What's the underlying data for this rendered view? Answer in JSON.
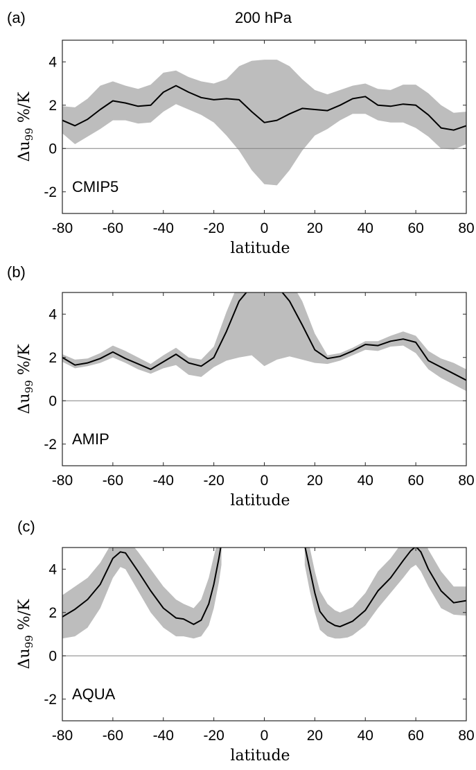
{
  "title": "200 hPa",
  "style": {
    "band_color": "#bdbdbd",
    "line_color": "#000000",
    "zero_line_color": "#808080"
  },
  "chart_data": [
    {
      "panel_label": "(a)",
      "name": "CMIP5",
      "type": "line",
      "xlabel": "latitude",
      "ylabel_main": "Δu",
      "ylabel_sub": "99",
      "ylabel_units": " %/K",
      "xlim": [
        -80,
        80
      ],
      "ylim": [
        -3,
        5
      ],
      "xticks": [
        -80,
        -60,
        -40,
        -20,
        0,
        20,
        40,
        60,
        80
      ],
      "yticks": [
        -2,
        0,
        2,
        4
      ],
      "x": [
        -80,
        -75,
        -70,
        -65,
        -60,
        -55,
        -50,
        -45,
        -40,
        -35,
        -30,
        -25,
        -20,
        -15,
        -10,
        -5,
        0,
        5,
        10,
        15,
        20,
        25,
        30,
        35,
        40,
        45,
        50,
        55,
        60,
        65,
        70,
        75,
        80
      ],
      "mean": [
        1.3,
        1.05,
        1.35,
        1.8,
        2.2,
        2.1,
        1.95,
        2.0,
        2.6,
        2.9,
        2.6,
        2.35,
        2.25,
        2.3,
        2.25,
        1.7,
        1.2,
        1.3,
        1.6,
        1.85,
        1.8,
        1.75,
        2.0,
        2.3,
        2.4,
        2.0,
        1.95,
        2.05,
        2.0,
        1.55,
        0.95,
        0.85,
        1.05
      ],
      "upper": [
        1.95,
        1.9,
        2.3,
        2.9,
        3.1,
        2.9,
        2.75,
        2.95,
        3.5,
        3.6,
        3.3,
        3.1,
        3.0,
        3.2,
        3.8,
        4.05,
        4.1,
        4.1,
        3.8,
        3.2,
        2.7,
        2.5,
        2.7,
        2.9,
        3.0,
        2.75,
        2.7,
        2.95,
        2.95,
        2.55,
        2.0,
        1.65,
        1.7
      ],
      "lower": [
        0.7,
        0.2,
        0.55,
        0.9,
        1.3,
        1.3,
        1.15,
        1.2,
        1.7,
        2.05,
        1.8,
        1.55,
        1.2,
        0.6,
        -0.1,
        -1.0,
        -1.65,
        -1.7,
        -1.0,
        -0.1,
        0.6,
        0.9,
        1.3,
        1.6,
        1.6,
        1.3,
        1.2,
        1.2,
        0.95,
        0.55,
        0.0,
        -0.05,
        0.2
      ]
    },
    {
      "panel_label": "(b)",
      "name": "AMIP",
      "type": "line",
      "xlabel": "latitude",
      "ylabel_main": "Δu",
      "ylabel_sub": "99",
      "ylabel_units": " %/K",
      "xlim": [
        -80,
        80
      ],
      "ylim": [
        -3,
        5
      ],
      "xticks": [
        -80,
        -60,
        -40,
        -20,
        0,
        20,
        40,
        60,
        80
      ],
      "yticks": [
        -2,
        0,
        2,
        4
      ],
      "x": [
        -80,
        -75,
        -70,
        -65,
        -60,
        -55,
        -50,
        -45,
        -40,
        -35,
        -30,
        -25,
        -20,
        -15,
        -10,
        -5,
        0,
        5,
        10,
        15,
        20,
        25,
        30,
        35,
        40,
        45,
        50,
        55,
        60,
        65,
        70,
        75,
        80
      ],
      "mean": [
        2.0,
        1.65,
        1.75,
        1.95,
        2.25,
        1.95,
        1.7,
        1.45,
        1.8,
        2.15,
        1.75,
        1.6,
        2.0,
        3.2,
        4.6,
        5.3,
        5.4,
        5.3,
        4.6,
        3.5,
        2.35,
        1.95,
        2.05,
        2.3,
        2.6,
        2.55,
        2.75,
        2.85,
        2.7,
        1.85,
        1.55,
        1.25,
        0.95
      ],
      "upper": [
        2.15,
        1.9,
        1.95,
        2.2,
        2.55,
        2.3,
        2.0,
        1.7,
        2.1,
        2.45,
        2.0,
        1.9,
        2.5,
        4.1,
        5.5,
        6.0,
        6.0,
        6.0,
        5.6,
        4.6,
        3.1,
        2.1,
        2.2,
        2.45,
        2.75,
        2.75,
        3.0,
        3.2,
        3.0,
        2.3,
        1.95,
        1.75,
        1.45
      ],
      "lower": [
        1.8,
        1.5,
        1.6,
        1.75,
        2.0,
        1.75,
        1.45,
        1.25,
        1.5,
        1.65,
        1.2,
        1.1,
        1.55,
        1.85,
        2.0,
        2.1,
        1.6,
        1.9,
        2.05,
        1.9,
        1.75,
        1.7,
        1.85,
        2.1,
        2.35,
        2.3,
        2.5,
        2.55,
        2.2,
        1.45,
        1.05,
        0.75,
        0.45
      ]
    },
    {
      "panel_label": "(c)",
      "name": "AQUA",
      "type": "line",
      "xlabel": "latitude",
      "ylabel_main": "Δu",
      "ylabel_sub": "99",
      "ylabel_units": " %/K",
      "xlim": [
        -80,
        80
      ],
      "ylim": [
        -3,
        5
      ],
      "xticks": [
        -80,
        -60,
        -40,
        -20,
        0,
        20,
        40,
        60,
        80
      ],
      "yticks": [
        -2,
        0,
        2,
        4
      ],
      "segments": [
        {
          "x": [
            -80,
            -75,
            -70,
            -65,
            -60,
            -57,
            -55,
            -50,
            -45,
            -40,
            -35,
            -32,
            -28,
            -25,
            -22,
            -20,
            -18,
            -17
          ],
          "mean": [
            1.8,
            2.15,
            2.6,
            3.3,
            4.5,
            4.8,
            4.75,
            3.9,
            3.0,
            2.2,
            1.75,
            1.7,
            1.45,
            1.65,
            2.4,
            3.3,
            4.5,
            5.2
          ],
          "upper": [
            2.8,
            3.2,
            3.6,
            4.3,
            5.3,
            5.5,
            5.5,
            4.8,
            4.0,
            3.2,
            2.6,
            2.4,
            2.2,
            2.6,
            3.6,
            4.6,
            5.5,
            6.0
          ],
          "lower": [
            0.8,
            0.9,
            1.3,
            2.2,
            3.6,
            4.1,
            4.0,
            3.0,
            2.0,
            1.3,
            0.9,
            0.9,
            0.8,
            0.9,
            1.4,
            2.2,
            3.4,
            4.2
          ]
        },
        {
          "x": [
            16,
            18,
            20,
            22,
            25,
            28,
            30,
            33,
            35,
            40,
            45,
            50,
            55,
            58,
            60,
            62,
            65,
            70,
            75,
            80
          ],
          "mean": [
            5.1,
            4.0,
            2.9,
            2.05,
            1.6,
            1.4,
            1.35,
            1.5,
            1.6,
            2.1,
            3.0,
            3.6,
            4.4,
            4.85,
            5.05,
            4.8,
            4.0,
            3.0,
            2.45,
            2.55
          ],
          "upper": [
            6.0,
            5.0,
            3.9,
            3.0,
            2.4,
            2.1,
            2.0,
            2.15,
            2.25,
            2.9,
            3.9,
            4.5,
            5.3,
            5.8,
            6.0,
            5.7,
            4.9,
            3.9,
            3.2,
            3.2
          ],
          "lower": [
            4.2,
            3.0,
            2.0,
            1.2,
            0.9,
            0.8,
            0.8,
            0.85,
            0.95,
            1.4,
            2.2,
            2.9,
            3.6,
            4.05,
            4.2,
            3.9,
            3.2,
            2.2,
            1.9,
            1.85
          ]
        }
      ]
    }
  ]
}
